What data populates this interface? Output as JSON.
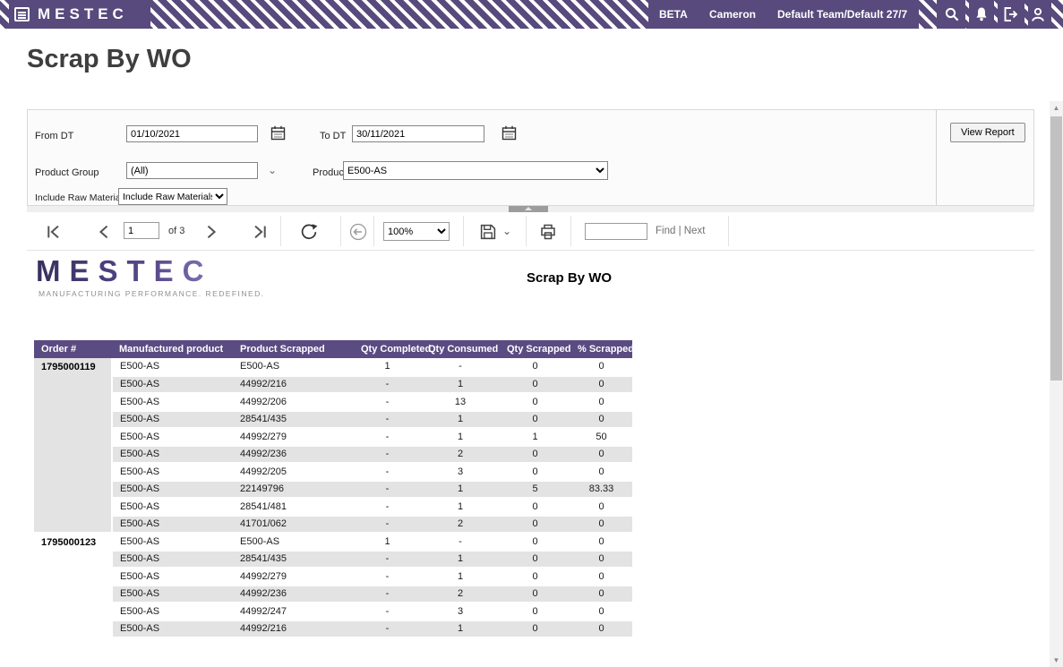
{
  "header": {
    "logo": "MESTEC",
    "beta": "BETA",
    "user": "Cameron",
    "team": "Default Team/Default 27/7"
  },
  "page": {
    "title": "Scrap By WO"
  },
  "filters": {
    "from_dt": {
      "label": "From DT",
      "value": "01/10/2021"
    },
    "to_dt": {
      "label": "To DT",
      "value": "30/11/2021"
    },
    "product_group": {
      "label": "Product Group",
      "value": "(All)"
    },
    "product": {
      "label": "Product",
      "value": "E500-AS"
    },
    "include_raw": {
      "label": "Include Raw Materials",
      "value": "Include Raw Materials"
    },
    "view_report": "View Report"
  },
  "toolbar": {
    "page_value": "1",
    "of_label": "of 3",
    "zoom_value": "100%",
    "find_value": "",
    "find_next": "Find | Next"
  },
  "report": {
    "logo_text": "MESTEC",
    "tagline": "MANUFACTURING PERFORMANCE. REDEFINED.",
    "title": "Scrap By WO",
    "table": {
      "columns": [
        "Order #",
        "Manufactured product",
        "Product Scrapped",
        "Qty Completed",
        "Qty Consumed",
        "Qty Scrapped",
        "% Scrapped"
      ],
      "groups": [
        {
          "order": "1795000119",
          "rows": [
            [
              "E500-AS",
              "E500-AS",
              "1",
              "-",
              "0",
              "0"
            ],
            [
              "E500-AS",
              "44992/216",
              "-",
              "1",
              "0",
              "0"
            ],
            [
              "E500-AS",
              "44992/206",
              "-",
              "13",
              "0",
              "0"
            ],
            [
              "E500-AS",
              "28541/435",
              "-",
              "1",
              "0",
              "0"
            ],
            [
              "E500-AS",
              "44992/279",
              "-",
              "1",
              "1",
              "50"
            ],
            [
              "E500-AS",
              "44992/236",
              "-",
              "2",
              "0",
              "0"
            ],
            [
              "E500-AS",
              "44992/205",
              "-",
              "3",
              "0",
              "0"
            ],
            [
              "E500-AS",
              "22149796",
              "-",
              "1",
              "5",
              "83.33"
            ],
            [
              "E500-AS",
              "28541/481",
              "-",
              "1",
              "0",
              "0"
            ],
            [
              "E500-AS",
              "41701/062",
              "-",
              "2",
              "0",
              "0"
            ]
          ]
        },
        {
          "order": "1795000123",
          "rows": [
            [
              "E500-AS",
              "E500-AS",
              "1",
              "-",
              "0",
              "0"
            ],
            [
              "E500-AS",
              "28541/435",
              "-",
              "1",
              "0",
              "0"
            ],
            [
              "E500-AS",
              "44992/279",
              "-",
              "1",
              "0",
              "0"
            ],
            [
              "E500-AS",
              "44992/236",
              "-",
              "2",
              "0",
              "0"
            ],
            [
              "E500-AS",
              "44992/247",
              "-",
              "3",
              "0",
              "0"
            ],
            [
              "E500-AS",
              "44992/216",
              "-",
              "1",
              "0",
              "0"
            ]
          ]
        }
      ]
    }
  },
  "colors": {
    "brand_purple": "#584a7c",
    "table_header_purple": "#5a4b82",
    "row_alt_gray": "#e3e3e3"
  }
}
